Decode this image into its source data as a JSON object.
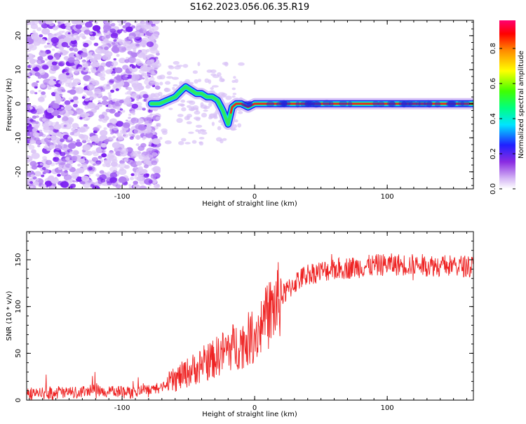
{
  "title": "S162.2023.056.06.35.R19",
  "chart_data": [
    {
      "type": "heatmap",
      "xlabel": "Height of straight line (km)",
      "ylabel": "Frequency (Hz)",
      "xlim": [
        -172,
        165
      ],
      "ylim": [
        -25,
        24.5
      ],
      "xticks": [
        -100,
        0,
        100
      ],
      "yticks": [
        -20,
        -10,
        0,
        10,
        20
      ],
      "colorbar": {
        "label": "Normalized spectral amplitude",
        "range": [
          0,
          0.96
        ],
        "ticks": [
          0.0,
          0.2,
          0.4,
          0.6,
          0.8
        ]
      },
      "ridge": {
        "x": [
          -78,
          -72,
          -66,
          -60,
          -55,
          -52,
          -48,
          -44,
          -40,
          -36,
          -32,
          -28,
          -24,
          -22,
          -20,
          -17,
          -14,
          -10,
          -5,
          0,
          165
        ],
        "y": [
          0,
          0,
          1,
          2,
          4,
          5,
          4,
          3,
          3,
          2,
          2,
          1,
          -2,
          -4,
          -6,
          -1,
          0,
          0,
          -1,
          0,
          0
        ]
      }
    },
    {
      "type": "line",
      "xlabel": "Height of straight line (km)",
      "ylabel": "SNR (10 * v/v)",
      "xlim": [
        -172,
        165
      ],
      "ylim": [
        0,
        180
      ],
      "xticks": [
        -100,
        0,
        100
      ],
      "yticks": [
        0,
        50,
        100,
        150
      ],
      "color": "#ee2222",
      "trend": {
        "x": [
          -172,
          -80,
          -70,
          -60,
          -50,
          -40,
          -30,
          -20,
          -10,
          0,
          10,
          20,
          30,
          40,
          60,
          100,
          165
        ],
        "y": [
          8,
          10,
          14,
          22,
          30,
          38,
          45,
          55,
          60,
          70,
          90,
          110,
          125,
          135,
          140,
          145,
          143
        ]
      }
    }
  ]
}
